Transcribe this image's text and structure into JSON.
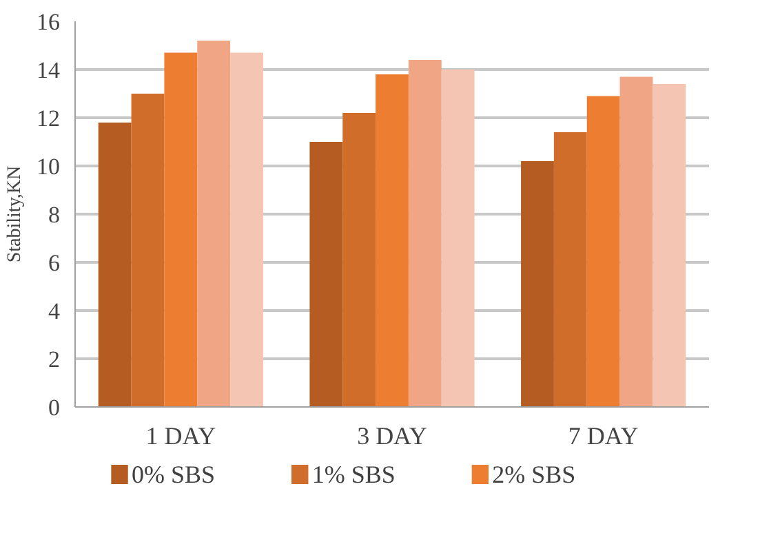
{
  "chart_data": {
    "type": "bar",
    "ylabel": "Stability,KN",
    "categories": [
      "1 DAY",
      "3 DAY",
      "7 DAY"
    ],
    "series": [
      {
        "name": "0% SBS",
        "color": "#b45c21",
        "values": [
          11.8,
          11.0,
          10.2
        ]
      },
      {
        "name": "1% SBS",
        "color": "#d16d2b",
        "values": [
          13.0,
          12.2,
          11.4
        ]
      },
      {
        "name": "2% SBS",
        "color": "#ed7d31",
        "values": [
          14.7,
          13.8,
          12.9
        ]
      },
      {
        "color": "#f0a585",
        "values": [
          15.2,
          14.4,
          13.7
        ]
      },
      {
        "color": "#f5c5b4",
        "values": [
          14.7,
          14.0,
          13.4
        ]
      }
    ],
    "ylim": [
      0,
      16
    ],
    "yticks": [
      0,
      2,
      4,
      6,
      8,
      10,
      12,
      14,
      16
    ],
    "grid": "y",
    "legend": "bottom"
  }
}
